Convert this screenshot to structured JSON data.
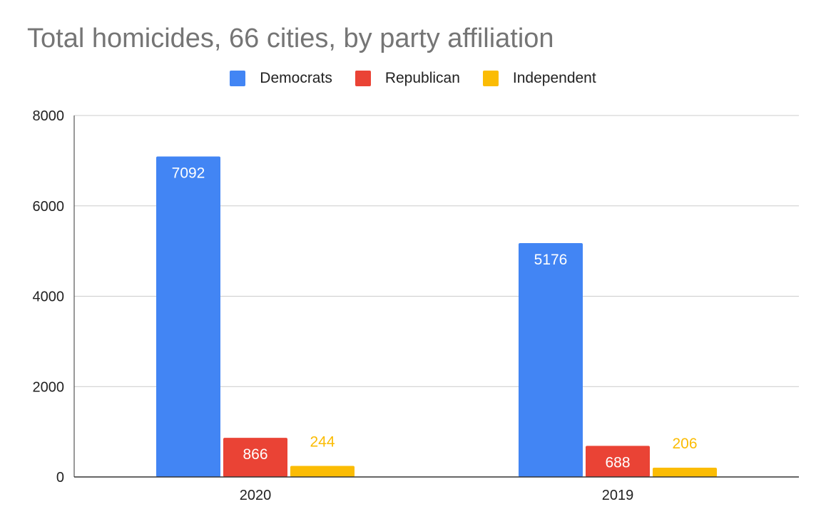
{
  "chart_data": {
    "type": "bar",
    "title": "Total homicides, 66 cities, by party affiliation",
    "categories": [
      "2020",
      "2019"
    ],
    "series": [
      {
        "name": "Democrats",
        "values": [
          7092,
          5176
        ],
        "color": "#4285f4",
        "label_color": "#ffffff",
        "label_position": "inside"
      },
      {
        "name": "Republican",
        "values": [
          866,
          688
        ],
        "color": "#ea4335",
        "label_color": "#ffffff",
        "label_position": "inside"
      },
      {
        "name": "Independent",
        "values": [
          244,
          206
        ],
        "color": "#fbbc04",
        "label_color": "#fbbc04",
        "label_position": "outside"
      }
    ],
    "y_ticks": [
      "0",
      "2000",
      "4000",
      "6000",
      "8000"
    ],
    "ylim": [
      0,
      8000
    ],
    "xlabel": "",
    "ylabel": "",
    "grid": true,
    "legend_position": "top-center"
  }
}
